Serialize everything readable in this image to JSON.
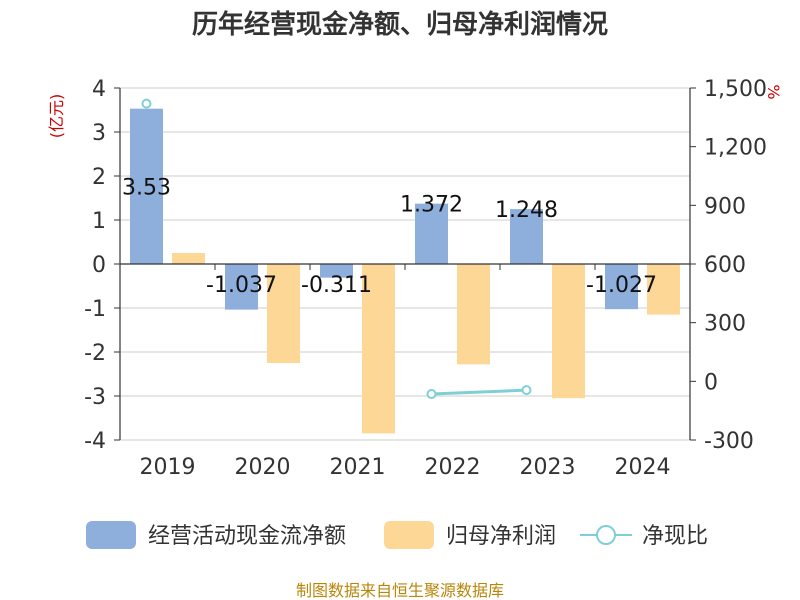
{
  "chart_data": {
    "type": "bar",
    "title": "历年经营现金净额、归母净利润情况",
    "categories": [
      "2019",
      "2020",
      "2021",
      "2022",
      "2023",
      "2024"
    ],
    "left_axis": {
      "unit": "(亿元)",
      "ylim": [
        -4,
        4
      ],
      "ticks": [
        "4",
        "3",
        "2",
        "1",
        "0",
        "-1",
        "-2",
        "-3",
        "-4"
      ]
    },
    "right_axis": {
      "unit": "%",
      "ylim": [
        -300,
        1500
      ],
      "ticks": [
        "1,500",
        "1,200",
        "900",
        "600",
        "300",
        "0",
        "-300"
      ]
    },
    "series": [
      {
        "name": "经营活动现金流净额",
        "type": "bar",
        "axis": "left",
        "color": "#8eaedb",
        "values": [
          3.53,
          -1.037,
          -0.311,
          1.372,
          1.248,
          -1.027
        ],
        "labels": [
          "3.53",
          "-1.037",
          "-0.311",
          "1.372",
          "1.248",
          "-1.027"
        ]
      },
      {
        "name": "归母净利润",
        "type": "bar",
        "axis": "left",
        "color": "#fdd796",
        "values": [
          0.25,
          -2.25,
          -3.85,
          -2.28,
          -3.05,
          -1.15
        ]
      },
      {
        "name": "净现比",
        "type": "line",
        "axis": "right",
        "color": "#7fd0d6",
        "values": [
          1420,
          null,
          null,
          -65,
          -45,
          null
        ]
      }
    ],
    "legend_position": "bottom"
  },
  "source": "制图数据来自恒生聚源数据库"
}
